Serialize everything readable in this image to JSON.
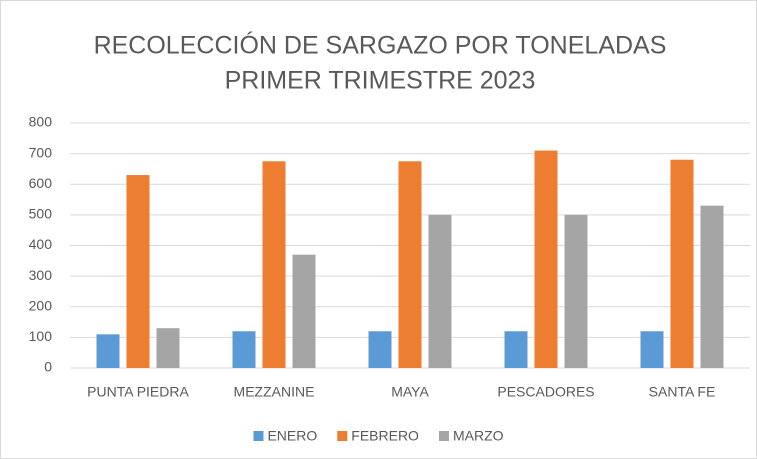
{
  "chart_data": {
    "type": "bar",
    "title": "RECOLECCIÓN DE SARGAZO POR TONELADAS",
    "subtitle": "PRIMER TRIMESTRE 2023",
    "categories": [
      "PUNTA PIEDRA",
      "MEZZANINE",
      "MAYA",
      "PESCADORES",
      "SANTA FE"
    ],
    "series": [
      {
        "name": "ENERO",
        "color": "#5b9bd5",
        "values": [
          110,
          120,
          120,
          120,
          120
        ]
      },
      {
        "name": "FEBRERO",
        "color": "#ed7d31",
        "values": [
          630,
          675,
          675,
          710,
          680
        ]
      },
      {
        "name": "MARZO",
        "color": "#a5a5a5",
        "values": [
          130,
          370,
          500,
          500,
          530
        ]
      }
    ],
    "ylim": [
      0,
      800
    ],
    "yticks": [
      0,
      100,
      200,
      300,
      400,
      500,
      600,
      700,
      800
    ],
    "grid": true,
    "legend": "bottom"
  }
}
